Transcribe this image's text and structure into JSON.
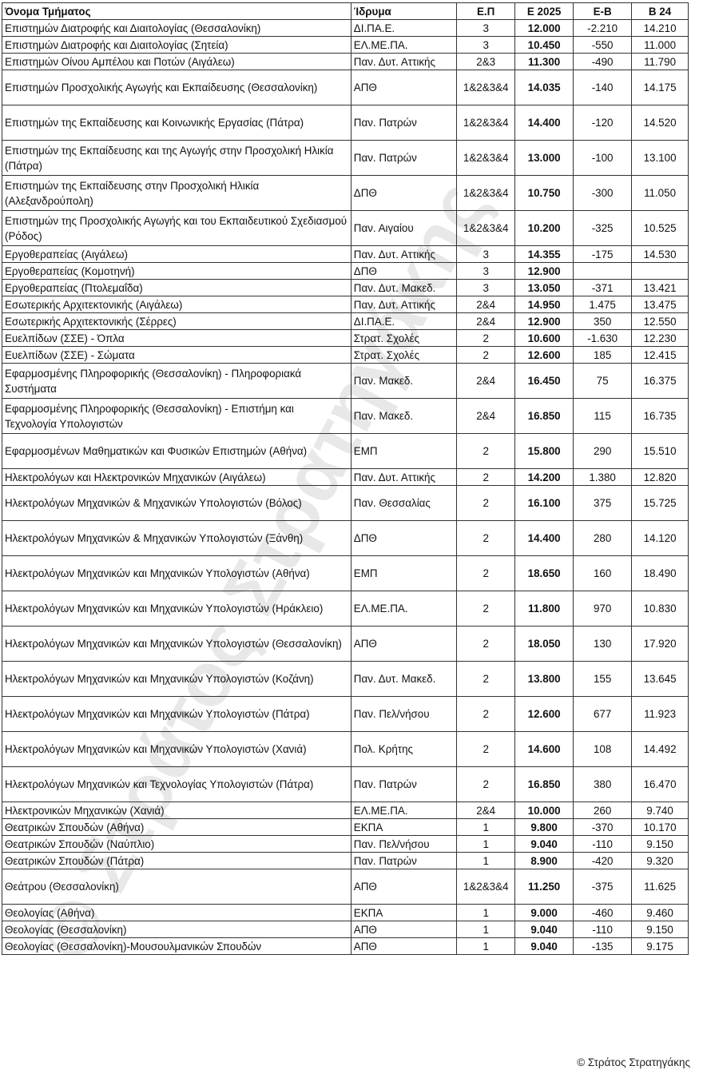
{
  "headers": {
    "name": "Όνομα Τμήματος",
    "institution": "Ίδρυμα",
    "ep": "Ε.Π",
    "e2025": "Ε 2025",
    "diff": "Ε-Β",
    "b24": "Β 24"
  },
  "rows": [
    {
      "name": "Επιστημών Διατροφής και Διαιτολογίας (Θεσσαλονίκη)",
      "institution": "ΔΙ.ΠΑ.Ε.",
      "ep": "3",
      "e2025": "12.000",
      "diff": "-2.210",
      "b24": "14.210",
      "tall": false
    },
    {
      "name": "Επιστημών Διατροφής και Διαιτολογίας (Σητεία)",
      "institution": "ΕΛ.ΜΕ.ΠΑ.",
      "ep": "3",
      "e2025": "10.450",
      "diff": "-550",
      "b24": "11.000",
      "tall": false
    },
    {
      "name": "Επιστημών Οίνου Αμπέλου και Ποτών (Αιγάλεω)",
      "institution": "Παν. Δυτ. Αττικής",
      "ep": "2&3",
      "e2025": "11.300",
      "diff": "-490",
      "b24": "11.790",
      "tall": false
    },
    {
      "name": "Επιστημών Προσχολικής Αγωγής και Εκπαίδευσης (Θεσσαλονίκη)",
      "institution": "ΑΠΘ",
      "ep": "1&2&3&4",
      "e2025": "14.035",
      "diff": "-140",
      "b24": "14.175",
      "tall": true
    },
    {
      "name": "Επιστημών της Εκπαίδευσης και Κοινωνικής  Εργασίας (Πάτρα)",
      "institution": "Παν. Πατρών",
      "ep": "1&2&3&4",
      "e2025": "14.400",
      "diff": "-120",
      "b24": "14.520",
      "tall": true
    },
    {
      "name": "Επιστημών της Εκπαίδευσης και της Αγωγής στην Προσχολική Ηλικία (Πάτρα)",
      "institution": "Παν. Πατρών",
      "ep": "1&2&3&4",
      "e2025": "13.000",
      "diff": "-100",
      "b24": "13.100",
      "tall": true
    },
    {
      "name": "Επιστημών της Εκπαίδευσης στην Προσχολική Ηλικία (Αλεξανδρούπολη)",
      "institution": "ΔΠΘ",
      "ep": "1&2&3&4",
      "e2025": "10.750",
      "diff": "-300",
      "b24": "11.050",
      "tall": true
    },
    {
      "name": "Επιστημών της Προσχολικής Αγωγής και του Εκπαιδευτικού Σχεδιασμού (Ρόδος)",
      "institution": "Παν. Αιγαίου",
      "ep": "1&2&3&4",
      "e2025": "10.200",
      "diff": "-325",
      "b24": "10.525",
      "tall": true
    },
    {
      "name": "Εργοθεραπείας (Αιγάλεω)",
      "institution": "Παν. Δυτ. Αττικής",
      "ep": "3",
      "e2025": "14.355",
      "diff": "-175",
      "b24": "14.530",
      "tall": false
    },
    {
      "name": "Εργοθεραπείας (Κομοτηνή)",
      "institution": "ΔΠΘ",
      "ep": "3",
      "e2025": "12.900",
      "diff": "",
      "b24": "",
      "tall": false
    },
    {
      "name": "Εργοθεραπείας (Πτολεμαΐδα)",
      "institution": "Παν. Δυτ. Μακεδ.",
      "ep": "3",
      "e2025": "13.050",
      "diff": "-371",
      "b24": "13.421",
      "tall": false
    },
    {
      "name": "Εσωτερικής Αρχιτεκτονικής (Αιγάλεω)",
      "institution": "Παν. Δυτ. Αττικής",
      "ep": "2&4",
      "e2025": "14.950",
      "diff": "1.475",
      "b24": "13.475",
      "tall": false
    },
    {
      "name": "Εσωτερικής Αρχιτεκτονικής (Σέρρες)",
      "institution": "ΔΙ.ΠΑ.Ε.",
      "ep": "2&4",
      "e2025": "12.900",
      "diff": "350",
      "b24": "12.550",
      "tall": false
    },
    {
      "name": "Ευελπίδων (ΣΣΕ) - Όπλα",
      "institution": "Στρατ. Σχολές",
      "ep": "2",
      "e2025": "10.600",
      "diff": "-1.630",
      "b24": "12.230",
      "tall": false
    },
    {
      "name": "Ευελπίδων (ΣΣΕ) - Σώματα",
      "institution": "Στρατ. Σχολές",
      "ep": "2",
      "e2025": "12.600",
      "diff": "185",
      "b24": "12.415",
      "tall": false
    },
    {
      "name": "Εφαρμοσμένης Πληροφορικής (Θεσσαλονίκη) - Πληροφοριακά Συστήματα",
      "institution": "Παν. Μακεδ.",
      "ep": "2&4",
      "e2025": "16.450",
      "diff": "75",
      "b24": "16.375",
      "tall": true
    },
    {
      "name": "Εφαρμοσμένης Πληροφορικής (Θεσσαλονίκη) - Επιστήμη και Τεχνολογία Υπολογιστών",
      "institution": "Παν. Μακεδ.",
      "ep": "2&4",
      "e2025": "16.850",
      "diff": "115",
      "b24": "16.735",
      "tall": true
    },
    {
      "name": "Εφαρμοσμένων Μαθηματικών και Φυσικών Επιστημών (Αθήνα)",
      "institution": "ΕΜΠ",
      "ep": "2",
      "e2025": "15.800",
      "diff": "290",
      "b24": "15.510",
      "tall": true
    },
    {
      "name": "Ηλεκτρολόγων και Ηλεκτρονικών Μηχανικών (Αιγάλεω)",
      "institution": "Παν. Δυτ. Αττικής",
      "ep": "2",
      "e2025": "14.200",
      "diff": "1.380",
      "b24": "12.820",
      "tall": false
    },
    {
      "name": "Ηλεκτρολόγων Μηχανικών & Μηχανικών Υπολογιστών (Βόλος)",
      "institution": "Παν. Θεσσαλίας",
      "ep": "2",
      "e2025": "16.100",
      "diff": "375",
      "b24": "15.725",
      "tall": true
    },
    {
      "name": "Ηλεκτρολόγων Μηχανικών & Μηχανικών Υπολογιστών (Ξάνθη)",
      "institution": "ΔΠΘ",
      "ep": "2",
      "e2025": "14.400",
      "diff": "280",
      "b24": "14.120",
      "tall": true
    },
    {
      "name": "Ηλεκτρολόγων Μηχανικών και Μηχανικών Υπολογιστών (Αθήνα)",
      "institution": "ΕΜΠ",
      "ep": "2",
      "e2025": "18.650",
      "diff": "160",
      "b24": "18.490",
      "tall": true
    },
    {
      "name": "Ηλεκτρολόγων Μηχανικών και Μηχανικών Υπολογιστών (Ηράκλειο)",
      "institution": "ΕΛ.ΜΕ.ΠΑ.",
      "ep": "2",
      "e2025": "11.800",
      "diff": "970",
      "b24": "10.830",
      "tall": true
    },
    {
      "name": "Ηλεκτρολόγων Μηχανικών και Μηχανικών Υπολογιστών (Θεσσαλονίκη)",
      "institution": "ΑΠΘ",
      "ep": "2",
      "e2025": "18.050",
      "diff": "130",
      "b24": "17.920",
      "tall": true
    },
    {
      "name": "Ηλεκτρολόγων Μηχανικών και Μηχανικών Υπολογιστών (Κοζάνη)",
      "institution": "Παν. Δυτ. Μακεδ.",
      "ep": "2",
      "e2025": "13.800",
      "diff": "155",
      "b24": "13.645",
      "tall": true
    },
    {
      "name": "Ηλεκτρολόγων Μηχανικών και Μηχανικών Υπολογιστών (Πάτρα)",
      "institution": "Παν. Πελ/νήσου",
      "ep": "2",
      "e2025": "12.600",
      "diff": "677",
      "b24": "11.923",
      "tall": true
    },
    {
      "name": "Ηλεκτρολόγων Μηχανικών και Μηχανικών Υπολογιστών (Χανιά)",
      "institution": "Πολ. Κρήτης",
      "ep": "2",
      "e2025": "14.600",
      "diff": "108",
      "b24": "14.492",
      "tall": true
    },
    {
      "name": "Ηλεκτρολόγων Μηχανικών και Τεχνολογίας Υπολογιστών (Πάτρα)",
      "institution": "Παν. Πατρών",
      "ep": "2",
      "e2025": "16.850",
      "diff": "380",
      "b24": "16.470",
      "tall": true
    },
    {
      "name": "Ηλεκτρονικών Μηχανικών (Χανιά)",
      "institution": "ΕΛ.ΜΕ.ΠΑ.",
      "ep": "2&4",
      "e2025": "10.000",
      "diff": "260",
      "b24": "9.740",
      "tall": false
    },
    {
      "name": "Θεατρικών Σπουδών (Αθήνα)",
      "institution": "ΕΚΠΑ",
      "ep": "1",
      "e2025": "9.800",
      "diff": "-370",
      "b24": "10.170",
      "tall": false
    },
    {
      "name": "Θεατρικών Σπουδών (Ναύπλιο)",
      "institution": "Παν. Πελ/νήσου",
      "ep": "1",
      "e2025": "9.040",
      "diff": "-110",
      "b24": "9.150",
      "tall": false
    },
    {
      "name": "Θεατρικών Σπουδών (Πάτρα)",
      "institution": "Παν. Πατρών",
      "ep": "1",
      "e2025": "8.900",
      "diff": "-420",
      "b24": "9.320",
      "tall": false
    },
    {
      "name": "Θεάτρου (Θεσσαλονίκη)",
      "institution": "ΑΠΘ",
      "ep": "1&2&3&4",
      "e2025": "11.250",
      "diff": "-375",
      "b24": "11.625",
      "tall": true
    },
    {
      "name": "Θεολογίας (Αθήνα)",
      "institution": "ΕΚΠΑ",
      "ep": "1",
      "e2025": "9.000",
      "diff": "-460",
      "b24": "9.460",
      "tall": false
    },
    {
      "name": "Θεολογίας (Θεσσαλονίκη)",
      "institution": "ΑΠΘ",
      "ep": "1",
      "e2025": "9.040",
      "diff": "-110",
      "b24": "9.150",
      "tall": false
    },
    {
      "name": "Θεολογίας (Θεσσαλονίκη)-Μουσουλμανικών Σπουδών",
      "institution": "ΑΠΘ",
      "ep": "1",
      "e2025": "9.040",
      "diff": "-135",
      "b24": "9.175",
      "tall": false
    }
  ],
  "watermark": "© Στράτος Στρατηγάκης",
  "footer": "© Στράτος Στρατηγάκης"
}
